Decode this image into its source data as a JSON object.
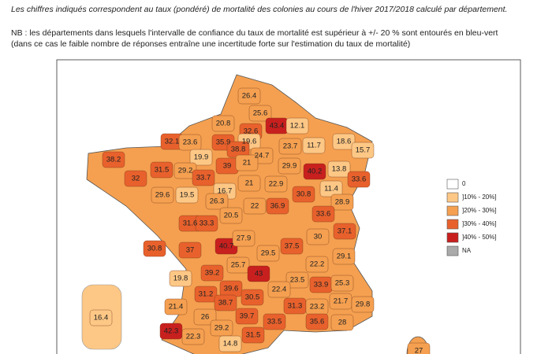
{
  "header": {
    "note": "Les chiffres indiqués correspondent au taux (pondéré) de mortalité des colonies au cours de l'hiver 2017/2018 calculé par département.",
    "nb_line1": "NB : les départements dans lesquels l'intervalle de confiance du taux de mortalité est supérieur à +/- 20 % sont entourés en bleu-vert",
    "nb_line2": "(dans ce cas le faible nombre de réponses entraîne une incertitude forte sur l'estimation du taux de mortalité)"
  },
  "legend": [
    {
      "label": "0",
      "color": "#ffffff"
    },
    {
      "label": "]10% - 20%]",
      "color": "#fdc785"
    },
    {
      "label": "]20% - 30%]",
      "color": "#f5a050"
    },
    {
      "label": "]30% - 40%]",
      "color": "#e8612c"
    },
    {
      "label": "]40% - 50%]",
      "color": "#c8201e"
    },
    {
      "label": "NA",
      "color": "#aaaaaa"
    }
  ],
  "departments": {
    "values": [
      26.4,
      25.6,
      43.4,
      12.1,
      20.8,
      32.6,
      32.1,
      23.6,
      35.9,
      19.6,
      11.7,
      18.6,
      15.7,
      23.7,
      38.8,
      24.7,
      38.2,
      19.9,
      31.5,
      29.2,
      39,
      21,
      29.9,
      40.2,
      13.8,
      33.7,
      32,
      33.6,
      21,
      22.9,
      30.8,
      11.4,
      29.6,
      19.5,
      16.7,
      28.9,
      26.3,
      36.9,
      20.5,
      22,
      33.6,
      31.6,
      33.3,
      37.1,
      30,
      37,
      40.7,
      27.9,
      30.8,
      29.5,
      37.5,
      29.1,
      39.2,
      25.7,
      43,
      22.2,
      19.8,
      23.5,
      33.9,
      25.3,
      22.4,
      31.2,
      39.6,
      30.5,
      21.4,
      38.7,
      31.3,
      23.2,
      21.7,
      29.8,
      16.4,
      26,
      39.7,
      33.5,
      35.6,
      28,
      42.3,
      22.3,
      29.2,
      31.5,
      14.8,
      27
    ],
    "colors": [
      "#f5a050",
      "#f5a050",
      "#c8201e",
      "#fdc785",
      "#f5a050",
      "#e8612c",
      "#e8612c",
      "#f5a050",
      "#e8612c",
      "#fdc785",
      "#fdc785",
      "#fdc785",
      "#fdc785",
      "#f5a050",
      "#e8612c",
      "#f5a050",
      "#e8612c",
      "#fdc785",
      "#e8612c",
      "#f5a050",
      "#e8612c",
      "#f5a050",
      "#f5a050",
      "#c8201e",
      "#fdc785",
      "#e8612c",
      "#e8612c",
      "#e8612c",
      "#f5a050",
      "#f5a050",
      "#e8612c",
      "#fdc785",
      "#f5a050",
      "#fdc785",
      "#fdc785",
      "#f5a050",
      "#f5a050",
      "#e8612c",
      "#f5a050",
      "#f5a050",
      "#e8612c",
      "#e8612c",
      "#e8612c",
      "#e8612c",
      "#f5a050",
      "#e8612c",
      "#c8201e",
      "#f5a050",
      "#e8612c",
      "#f5a050",
      "#e8612c",
      "#f5a050",
      "#e8612c",
      "#f5a050",
      "#c8201e",
      "#f5a050",
      "#fdc785",
      "#f5a050",
      "#e8612c",
      "#f5a050",
      "#f5a050",
      "#e8612c",
      "#e8612c",
      "#e8612c",
      "#f5a050",
      "#e8612c",
      "#e8612c",
      "#f5a050",
      "#f5a050",
      "#f5a050",
      "#fdc785",
      "#f5a050",
      "#e8612c",
      "#e8612c",
      "#e8612c",
      "#f5a050",
      "#c8201e",
      "#f5a050",
      "#f5a050",
      "#e8612c",
      "#fdc785",
      "#f5a050"
    ]
  }
}
